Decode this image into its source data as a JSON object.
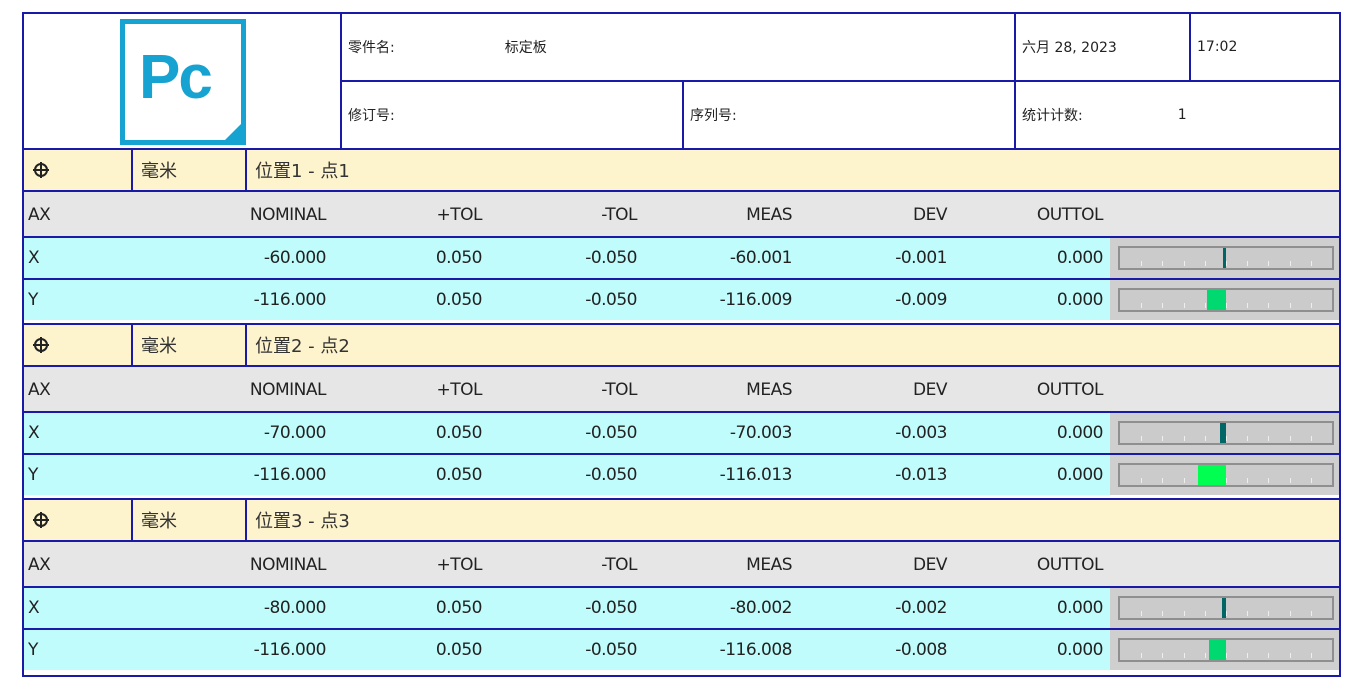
{
  "header": {
    "logo_text": "Pc",
    "part_name_label": "零件名:",
    "part_name": "标定板",
    "date": "六月 28, 2023",
    "time": "17:02",
    "revision_label": "修订号:",
    "serial_label": "序列号:",
    "stat_count_label": "统计计数:",
    "stat_count": "1"
  },
  "columns": [
    "AX",
    "NOMINAL",
    "+TOL",
    "-TOL",
    "MEAS",
    "DEV",
    "OUTTOL"
  ],
  "colors": {
    "border": "#1a1aa8",
    "section_header": "#fdf3cc",
    "column_header": "#e6e6e6",
    "data_row": "#c0fcfc",
    "dev_bar_small": "#006666",
    "dev_bar": "#00d870",
    "dev_bar_bright": "#00ff50"
  },
  "sections": [
    {
      "icon": "crosshair-icon",
      "units": "毫米",
      "title": "位置1 - 点1",
      "rows": [
        {
          "ax": "X",
          "nominal": "-60.000",
          "plus_tol": "0.050",
          "minus_tol": "-0.050",
          "meas": "-60.001",
          "dev": "-0.001",
          "outtol": "0.000"
        },
        {
          "ax": "Y",
          "nominal": "-116.000",
          "plus_tol": "0.050",
          "minus_tol": "-0.050",
          "meas": "-116.009",
          "dev": "-0.009",
          "outtol": "0.000"
        }
      ]
    },
    {
      "icon": "crosshair-icon",
      "units": "毫米",
      "title": "位置2 - 点2",
      "rows": [
        {
          "ax": "X",
          "nominal": "-70.000",
          "plus_tol": "0.050",
          "minus_tol": "-0.050",
          "meas": "-70.003",
          "dev": "-0.003",
          "outtol": "0.000"
        },
        {
          "ax": "Y",
          "nominal": "-116.000",
          "plus_tol": "0.050",
          "minus_tol": "-0.050",
          "meas": "-116.013",
          "dev": "-0.013",
          "outtol": "0.000"
        }
      ]
    },
    {
      "icon": "crosshair-icon",
      "units": "毫米",
      "title": "位置3 - 点3",
      "rows": [
        {
          "ax": "X",
          "nominal": "-80.000",
          "plus_tol": "0.050",
          "minus_tol": "-0.050",
          "meas": "-80.002",
          "dev": "-0.002",
          "outtol": "0.000"
        },
        {
          "ax": "Y",
          "nominal": "-116.000",
          "plus_tol": "0.050",
          "minus_tol": "-0.050",
          "meas": "-116.008",
          "dev": "-0.008",
          "outtol": "0.000"
        }
      ]
    }
  ]
}
